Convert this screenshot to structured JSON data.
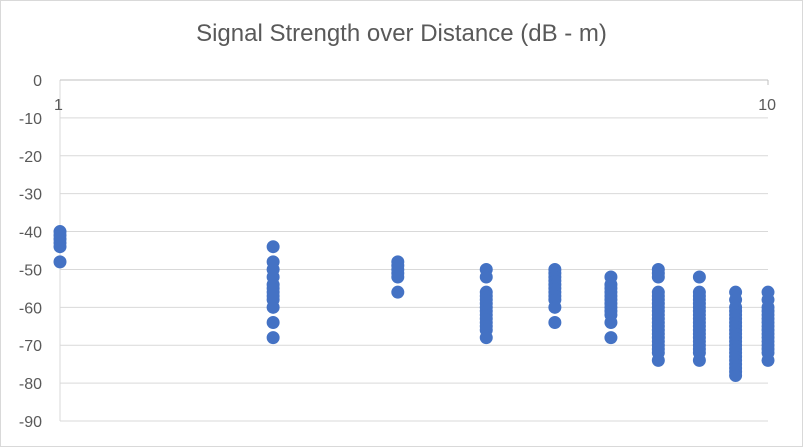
{
  "chart_data": {
    "type": "scatter",
    "title": "Signal Strength over Distance (dB - m)",
    "xlabel": "",
    "ylabel": "",
    "x_scale": "log",
    "xlim": [
      1,
      10
    ],
    "ylim": [
      -90,
      0
    ],
    "x_axis_position": "top",
    "grid": "horizontal",
    "legend": "none",
    "marker_color": "#4472c4",
    "x_ticks": [
      "1",
      "10"
    ],
    "y_ticks": [
      "0",
      "-10",
      "-20",
      "-30",
      "-40",
      "-50",
      "-60",
      "-70",
      "-80",
      "-90"
    ],
    "series": [
      {
        "points": [
          [
            1,
            -40
          ],
          [
            1,
            -41
          ],
          [
            1,
            -42
          ],
          [
            1,
            -43
          ],
          [
            1,
            -44
          ],
          [
            1,
            -48
          ],
          [
            2,
            -44
          ],
          [
            2,
            -48
          ],
          [
            2,
            -50
          ],
          [
            2,
            -52
          ],
          [
            2,
            -54
          ],
          [
            2,
            -55
          ],
          [
            2,
            -56
          ],
          [
            2,
            -57
          ],
          [
            2,
            -58
          ],
          [
            2,
            -60
          ],
          [
            2,
            -64
          ],
          [
            2,
            -68
          ],
          [
            3,
            -48
          ],
          [
            3,
            -49
          ],
          [
            3,
            -50
          ],
          [
            3,
            -51
          ],
          [
            3,
            -52
          ],
          [
            3,
            -56
          ],
          [
            4,
            -50
          ],
          [
            4,
            -52
          ],
          [
            4,
            -56
          ],
          [
            4,
            -57
          ],
          [
            4,
            -58
          ],
          [
            4,
            -59
          ],
          [
            4,
            -60
          ],
          [
            4,
            -61
          ],
          [
            4,
            -62
          ],
          [
            4,
            -63
          ],
          [
            4,
            -64
          ],
          [
            4,
            -65
          ],
          [
            4,
            -66
          ],
          [
            4,
            -68
          ],
          [
            5,
            -50
          ],
          [
            5,
            -51
          ],
          [
            5,
            -52
          ],
          [
            5,
            -53
          ],
          [
            5,
            -54
          ],
          [
            5,
            -55
          ],
          [
            5,
            -56
          ],
          [
            5,
            -57
          ],
          [
            5,
            -58
          ],
          [
            5,
            -60
          ],
          [
            5,
            -64
          ],
          [
            6,
            -52
          ],
          [
            6,
            -54
          ],
          [
            6,
            -55
          ],
          [
            6,
            -56
          ],
          [
            6,
            -57
          ],
          [
            6,
            -58
          ],
          [
            6,
            -59
          ],
          [
            6,
            -60
          ],
          [
            6,
            -61
          ],
          [
            6,
            -62
          ],
          [
            6,
            -64
          ],
          [
            6,
            -68
          ],
          [
            7,
            -50
          ],
          [
            7,
            -51
          ],
          [
            7,
            -52
          ],
          [
            7,
            -56
          ],
          [
            7,
            -57
          ],
          [
            7,
            -58
          ],
          [
            7,
            -59
          ],
          [
            7,
            -60
          ],
          [
            7,
            -61
          ],
          [
            7,
            -62
          ],
          [
            7,
            -63
          ],
          [
            7,
            -64
          ],
          [
            7,
            -65
          ],
          [
            7,
            -66
          ],
          [
            7,
            -67
          ],
          [
            7,
            -68
          ],
          [
            7,
            -69
          ],
          [
            7,
            -70
          ],
          [
            7,
            -71
          ],
          [
            7,
            -72
          ],
          [
            7,
            -74
          ],
          [
            8,
            -52
          ],
          [
            8,
            -56
          ],
          [
            8,
            -57
          ],
          [
            8,
            -58
          ],
          [
            8,
            -59
          ],
          [
            8,
            -60
          ],
          [
            8,
            -61
          ],
          [
            8,
            -62
          ],
          [
            8,
            -63
          ],
          [
            8,
            -64
          ],
          [
            8,
            -65
          ],
          [
            8,
            -66
          ],
          [
            8,
            -67
          ],
          [
            8,
            -68
          ],
          [
            8,
            -69
          ],
          [
            8,
            -70
          ],
          [
            8,
            -71
          ],
          [
            8,
            -72
          ],
          [
            8,
            -74
          ],
          [
            9,
            -56
          ],
          [
            9,
            -58
          ],
          [
            9,
            -60
          ],
          [
            9,
            -61
          ],
          [
            9,
            -62
          ],
          [
            9,
            -63
          ],
          [
            9,
            -64
          ],
          [
            9,
            -65
          ],
          [
            9,
            -66
          ],
          [
            9,
            -67
          ],
          [
            9,
            -68
          ],
          [
            9,
            -69
          ],
          [
            9,
            -70
          ],
          [
            9,
            -71
          ],
          [
            9,
            -72
          ],
          [
            9,
            -73
          ],
          [
            9,
            -74
          ],
          [
            9,
            -75
          ],
          [
            9,
            -76
          ],
          [
            9,
            -77
          ],
          [
            9,
            -78
          ],
          [
            10,
            -56
          ],
          [
            10,
            -58
          ],
          [
            10,
            -60
          ],
          [
            10,
            -61
          ],
          [
            10,
            -62
          ],
          [
            10,
            -63
          ],
          [
            10,
            -64
          ],
          [
            10,
            -65
          ],
          [
            10,
            -66
          ],
          [
            10,
            -67
          ],
          [
            10,
            -68
          ],
          [
            10,
            -69
          ],
          [
            10,
            -70
          ],
          [
            10,
            -71
          ],
          [
            10,
            -72
          ],
          [
            10,
            -74
          ]
        ]
      }
    ]
  }
}
